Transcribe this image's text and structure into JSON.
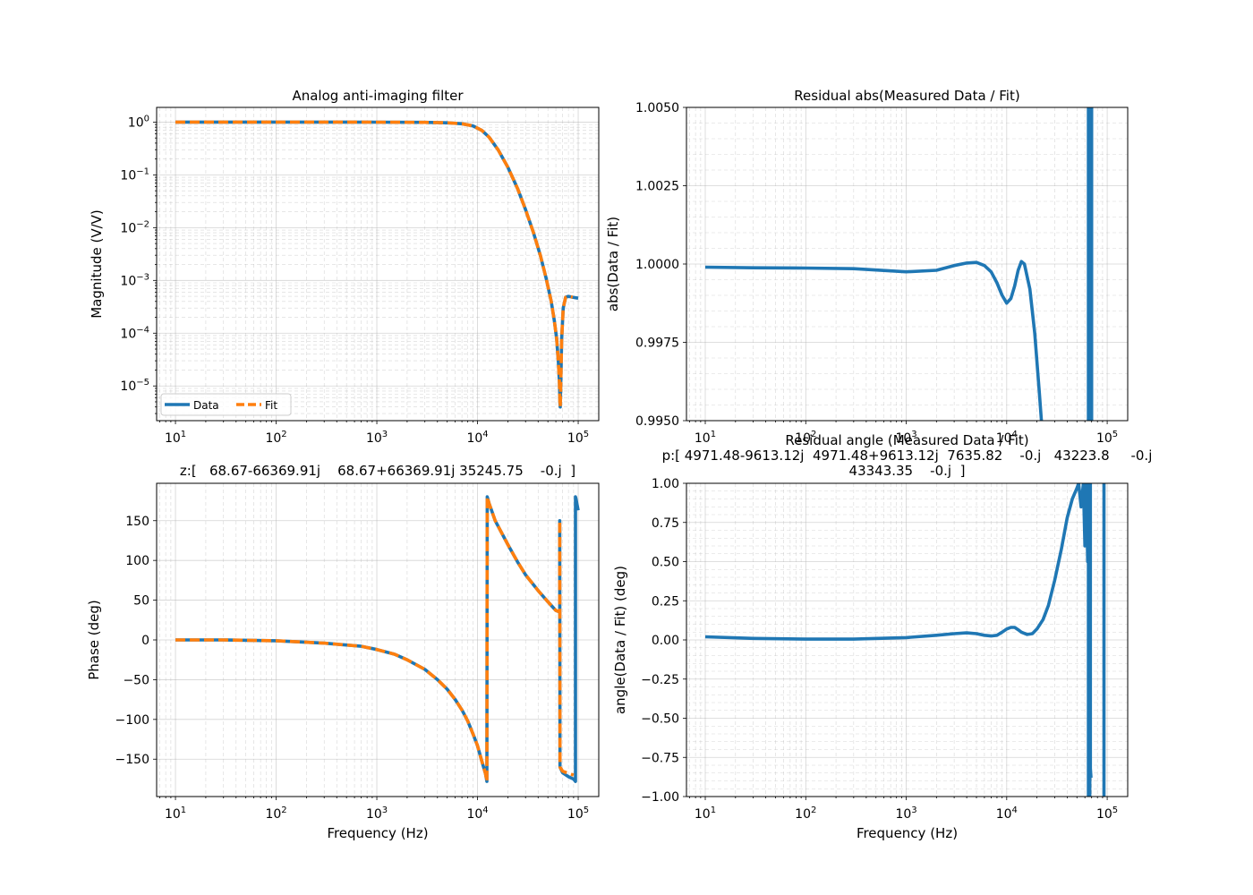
{
  "figure_title": "Analog anti-imaging filter",
  "colors": {
    "data": "#1f77b4",
    "fit": "#ff7f0e"
  },
  "chart_data": [
    {
      "type": "line",
      "panel": "magnitude",
      "title": "Analog anti-imaging filter",
      "xlabel": "",
      "ylabel": "Magnitude (V/V)",
      "xscale": "log",
      "yscale": "log",
      "xlim": [
        6.5,
        160000
      ],
      "ylim": [
        2.2e-06,
        1.9
      ],
      "xticks": [
        {
          "value": 10,
          "base": "10",
          "exp": "1"
        },
        {
          "value": 100,
          "base": "10",
          "exp": "2"
        },
        {
          "value": 1000,
          "base": "10",
          "exp": "3"
        },
        {
          "value": 10000,
          "base": "10",
          "exp": "4"
        },
        {
          "value": 100000,
          "base": "10",
          "exp": "5"
        }
      ],
      "yticks": [
        {
          "value": 1,
          "base": "10",
          "exp": "0"
        },
        {
          "value": 0.1,
          "base": "10",
          "exp": "−1"
        },
        {
          "value": 0.01,
          "base": "10",
          "exp": "−2"
        },
        {
          "value": 0.001,
          "base": "10",
          "exp": "−3"
        },
        {
          "value": 0.0001,
          "base": "10",
          "exp": "−4"
        },
        {
          "value": 1e-05,
          "base": "10",
          "exp": "−5"
        }
      ],
      "grid": true,
      "legend": {
        "position": "lower-left",
        "entries": [
          "Data",
          "Fit"
        ]
      },
      "series": [
        {
          "name": "Data",
          "style": "solid",
          "x": [
            10,
            100,
            1000,
            3000,
            5000,
            7000,
            9000,
            11000,
            13000,
            16000,
            20000,
            25000,
            30000,
            36000,
            42000,
            48000,
            54000,
            58000,
            61000,
            63500,
            65000,
            66000,
            66369,
            67000,
            68500,
            71000,
            75000,
            80000,
            88000,
            100000
          ],
          "y": [
            1.0,
            1.0,
            0.999,
            0.99,
            0.97,
            0.93,
            0.85,
            0.7,
            0.52,
            0.3,
            0.14,
            0.055,
            0.022,
            0.008,
            0.003,
            0.0011,
            0.0004,
            0.00017,
            8e-05,
            3e-05,
            1.2e-05,
            4.5e-06,
            4e-06,
            1e-05,
            8e-05,
            0.0003,
            0.00048,
            0.0005,
            0.00048,
            0.00046
          ]
        },
        {
          "name": "Fit",
          "style": "dashed",
          "x": [
            10,
            100,
            1000,
            3000,
            5000,
            7000,
            9000,
            11000,
            13000,
            16000,
            20000,
            25000,
            30000,
            36000,
            42000,
            48000,
            54000,
            58000,
            61000,
            63500,
            65000,
            66000,
            66369,
            67000,
            68500,
            71000,
            75000,
            80000,
            88000
          ],
          "y": [
            1.0,
            1.0,
            0.999,
            0.99,
            0.97,
            0.93,
            0.85,
            0.7,
            0.52,
            0.3,
            0.14,
            0.055,
            0.022,
            0.008,
            0.003,
            0.0011,
            0.0004,
            0.00017,
            8e-05,
            3e-05,
            1.2e-05,
            4.5e-06,
            4e-06,
            1e-05,
            8e-05,
            0.0003,
            0.00048,
            0.0005,
            0.00048
          ]
        }
      ]
    },
    {
      "type": "line",
      "panel": "residual-magnitude",
      "title": "Residual abs(Measured Data / Fit)",
      "xlabel": "",
      "ylabel": "abs(Data / Fit)",
      "xscale": "log",
      "yscale": "linear",
      "xlim": [
        6.5,
        160000
      ],
      "ylim": [
        0.995,
        1.005
      ],
      "xticks": [
        {
          "value": 10,
          "base": "10",
          "exp": "1"
        },
        {
          "value": 100,
          "base": "10",
          "exp": "2"
        },
        {
          "value": 1000,
          "base": "10",
          "exp": "3"
        },
        {
          "value": 10000,
          "base": "10",
          "exp": "4"
        },
        {
          "value": 100000,
          "base": "10",
          "exp": "5"
        }
      ],
      "yticks": [
        {
          "value": 0.995,
          "label": "0.9950"
        },
        {
          "value": 0.9975,
          "label": "0.9975"
        },
        {
          "value": 1.0,
          "label": "1.0000"
        },
        {
          "value": 1.0025,
          "label": "1.0025"
        },
        {
          "value": 1.005,
          "label": "1.0050"
        }
      ],
      "grid": true,
      "series": [
        {
          "name": "Data",
          "style": "solid",
          "x": [
            10,
            30,
            100,
            300,
            1000,
            2000,
            3000,
            4000,
            5000,
            6000,
            7000,
            8000,
            9000,
            10000,
            11000,
            12000,
            13000,
            14000,
            15000,
            17000,
            19000,
            21000,
            23000,
            25000
          ],
          "y": [
            0.9999,
            0.99988,
            0.99987,
            0.99985,
            0.99975,
            0.9998,
            0.99995,
            1.00003,
            1.00005,
            0.99995,
            0.99975,
            0.9994,
            0.999,
            0.99875,
            0.9989,
            0.9993,
            0.9998,
            1.00008,
            1.0,
            0.9992,
            0.9978,
            0.996,
            0.9943,
            0.993
          ]
        },
        {
          "name": "Data",
          "style": "solid",
          "x": [
            65000,
            65000,
            66000,
            66000,
            67000,
            67000,
            68000,
            68000,
            69000,
            69000,
            70000,
            70000
          ],
          "y": [
            0.99,
            1.01,
            0.99,
            1.01,
            0.99,
            1.01,
            0.99,
            1.01,
            0.99,
            1.01,
            0.99,
            1.01
          ]
        }
      ]
    },
    {
      "type": "line",
      "panel": "phase",
      "title": "z:[   68.67-66369.91j    68.67+66369.91j 35245.75    -0.j  ]",
      "xlabel": "Frequency (Hz)",
      "ylabel": "Phase (deg)",
      "xscale": "log",
      "yscale": "linear",
      "xlim": [
        6.5,
        160000
      ],
      "ylim": [
        -197,
        197
      ],
      "xticks": [
        {
          "value": 10,
          "base": "10",
          "exp": "1"
        },
        {
          "value": 100,
          "base": "10",
          "exp": "2"
        },
        {
          "value": 1000,
          "base": "10",
          "exp": "3"
        },
        {
          "value": 10000,
          "base": "10",
          "exp": "4"
        },
        {
          "value": 100000,
          "base": "10",
          "exp": "5"
        }
      ],
      "yticks": [
        {
          "value": 150,
          "label": "150"
        },
        {
          "value": 100,
          "label": "100"
        },
        {
          "value": 50,
          "label": "50"
        },
        {
          "value": 0,
          "label": "0"
        },
        {
          "value": -50,
          "label": "−50"
        },
        {
          "value": -100,
          "label": "−100"
        },
        {
          "value": -150,
          "label": "−150"
        }
      ],
      "grid": true,
      "series": [
        {
          "name": "Data",
          "style": "solid",
          "x": [
            10,
            30,
            100,
            300,
            700,
            1000,
            1500,
            2000,
            3000,
            4000,
            5000,
            6000,
            7000,
            8000,
            9000,
            10000,
            11000,
            12000,
            12400,
            12500,
            13000,
            15000,
            20000,
            25000,
            30000,
            40000,
            50000,
            60000,
            65500,
            65500,
            66000,
            70000,
            80000,
            90000,
            94000,
            94000,
            95000,
            100000
          ],
          "y": [
            0,
            0,
            -1,
            -4,
            -8,
            -12,
            -18,
            -25,
            -37,
            -50,
            -62,
            -75,
            -88,
            -102,
            -118,
            -133,
            -152,
            -168,
            -178,
            180,
            172,
            150,
            120,
            98,
            82,
            62,
            48,
            37,
            35,
            150,
            -160,
            -167,
            -172,
            -175,
            -178,
            180,
            178,
            163
          ]
        },
        {
          "name": "Fit",
          "style": "dashed",
          "x": [
            10,
            30,
            100,
            300,
            700,
            1000,
            1500,
            2000,
            3000,
            4000,
            5000,
            6000,
            7000,
            8000,
            9000,
            10000,
            11000,
            12000,
            12400,
            12500,
            13000,
            15000,
            20000,
            25000,
            30000,
            40000,
            50000,
            60000,
            65500,
            65500,
            66000,
            70000,
            80000,
            90000
          ],
          "y": [
            0,
            0,
            -1,
            -4,
            -8,
            -12,
            -18,
            -25,
            -37,
            -50,
            -62,
            -75,
            -88,
            -102,
            -118,
            -133,
            -152,
            -168,
            -178,
            180,
            172,
            150,
            120,
            98,
            82,
            62,
            48,
            37,
            35,
            150,
            -160,
            -165,
            -168,
            -170
          ]
        }
      ]
    },
    {
      "type": "line",
      "panel": "residual-phase",
      "title": "Residual angle (Measured Data / Fit)",
      "title2": "p:[ 4971.48-9613.12j  4971.48+9613.12j  7635.82    -0.j   43223.8     -0.j",
      "title3": "43343.35    -0.j  ]",
      "xlabel": "Frequency (Hz)",
      "ylabel": "angle(Data / Fit) (deg)",
      "xscale": "log",
      "yscale": "linear",
      "xlim": [
        6.5,
        160000
      ],
      "ylim": [
        -1.0,
        1.0
      ],
      "xticks": [
        {
          "value": 10,
          "base": "10",
          "exp": "1"
        },
        {
          "value": 100,
          "base": "10",
          "exp": "2"
        },
        {
          "value": 1000,
          "base": "10",
          "exp": "3"
        },
        {
          "value": 10000,
          "base": "10",
          "exp": "4"
        },
        {
          "value": 100000,
          "base": "10",
          "exp": "5"
        }
      ],
      "yticks": [
        {
          "value": 1.0,
          "label": "1.00"
        },
        {
          "value": 0.75,
          "label": "0.75"
        },
        {
          "value": 0.5,
          "label": "0.50"
        },
        {
          "value": 0.25,
          "label": "0.25"
        },
        {
          "value": 0.0,
          "label": "0.00"
        },
        {
          "value": -0.25,
          "label": "−0.25"
        },
        {
          "value": -0.5,
          "label": "−0.50"
        },
        {
          "value": -0.75,
          "label": "−0.75"
        },
        {
          "value": -1.0,
          "label": "−1.00"
        }
      ],
      "grid": true,
      "series": [
        {
          "name": "Data",
          "style": "solid",
          "x": [
            10,
            30,
            100,
            300,
            1000,
            2000,
            3000,
            4000,
            5000,
            6000,
            7000,
            8000,
            9000,
            10000,
            11000,
            12000,
            13000,
            14000,
            16000,
            18000,
            20000,
            23000,
            26000,
            30000,
            35000,
            40000,
            45000,
            50000,
            52000,
            55000,
            58000,
            60000,
            62000,
            64000,
            65000,
            65000,
            66000,
            66000,
            67000,
            67000,
            68000,
            68000,
            69000
          ],
          "y": [
            0.02,
            0.01,
            0.005,
            0.005,
            0.015,
            0.03,
            0.04,
            0.045,
            0.04,
            0.03,
            0.025,
            0.03,
            0.05,
            0.07,
            0.08,
            0.08,
            0.065,
            0.05,
            0.035,
            0.04,
            0.07,
            0.13,
            0.22,
            0.38,
            0.58,
            0.78,
            0.9,
            0.97,
            1.0,
            0.85,
            1.0,
            0.6,
            1.0,
            0.5,
            1.1,
            -1.1,
            1.1,
            -1.1,
            1.1,
            -1.1,
            1.1,
            -0.82,
            -0.88
          ]
        },
        {
          "name": "Data",
          "style": "solid",
          "x": [
            93000,
            93000
          ],
          "y": [
            -1.1,
            1.1
          ]
        }
      ]
    }
  ]
}
